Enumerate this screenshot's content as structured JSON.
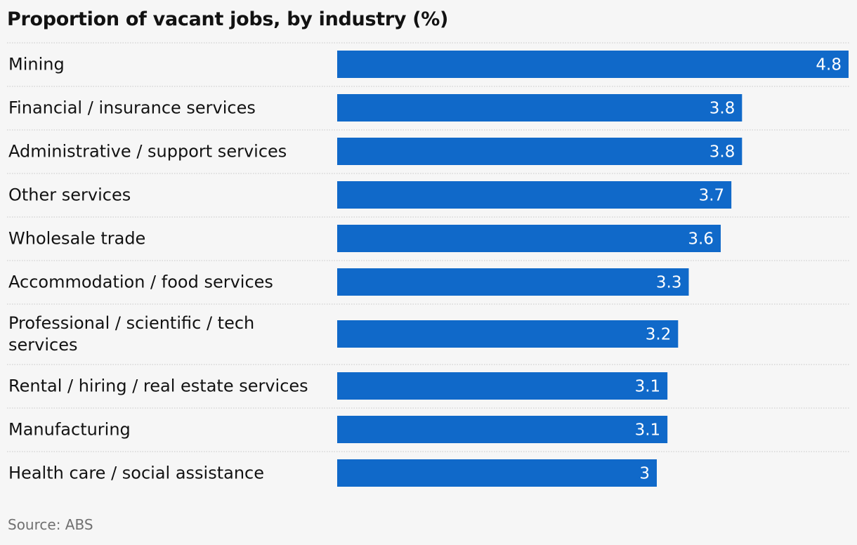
{
  "chart_data": {
    "type": "bar",
    "orientation": "horizontal",
    "title": "Proportion of vacant jobs, by industry (%)",
    "categories": [
      "Mining",
      "Financial / insurance services",
      "Administrative / support services",
      "Other services",
      "Wholesale trade",
      "Accommodation / food services",
      "Professional / scientific / tech services",
      "Rental / hiring / real estate services",
      "Manufacturing",
      "Health care / social assistance"
    ],
    "category_lines": [
      [
        "Mining"
      ],
      [
        "Financial / insurance services"
      ],
      [
        "Administrative / support services"
      ],
      [
        "Other services"
      ],
      [
        "Wholesale trade"
      ],
      [
        "Accommodation / food services"
      ],
      [
        "Professional / scientific / tech",
        "services"
      ],
      [
        "Rental / hiring / real estate services"
      ],
      [
        "Manufacturing"
      ],
      [
        "Health care / social assistance"
      ]
    ],
    "values": [
      4.8,
      3.8,
      3.8,
      3.7,
      3.6,
      3.3,
      3.2,
      3.1,
      3.1,
      3
    ],
    "data_labels": [
      "4.8",
      "3.8",
      "3.8",
      "3.7",
      "3.6",
      "3.3",
      "3.2",
      "3.1",
      "3.1",
      "3"
    ],
    "xlim": [
      0,
      4.8
    ],
    "bar_color": "#1069c9",
    "grid": false
  },
  "source": "Source: ABS"
}
